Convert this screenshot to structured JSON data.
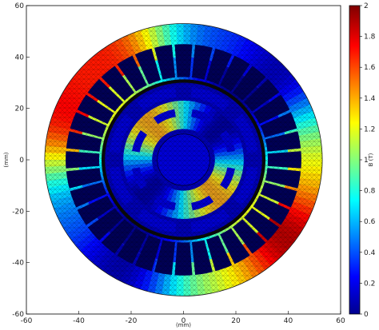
{
  "chart_data": {
    "type": "heatmap",
    "title": "",
    "xlabel": "(mm)",
    "ylabel": "(mm)",
    "xlim": [
      -60,
      60
    ],
    "ylim": [
      -60,
      60
    ],
    "xticks": [
      -60,
      -40,
      -20,
      0,
      20,
      40,
      60
    ],
    "yticks": [
      -60,
      -40,
      -20,
      0,
      20,
      40,
      60
    ],
    "colorbar": {
      "label": "B (T)",
      "range": [
        0,
        2
      ],
      "ticks": [
        "0",
        "0.2",
        "0.4",
        "0.6",
        "0.8",
        "1",
        "1.2",
        "1.4",
        "1.6",
        "1.8",
        "2"
      ],
      "colormap": "jet"
    },
    "geometry": {
      "stator_outer_radius": 53,
      "stator_inner_radius": 31,
      "slot_count": 36,
      "rotor_outer_radius": 30,
      "shaft_radius": 10,
      "poles": 8
    },
    "grid": false
  },
  "colors": {
    "jet_stops": [
      "#00008f",
      "#0000ff",
      "#00ffff",
      "#ffff00",
      "#ff0000",
      "#800000"
    ],
    "mesh": "#1a1a1a"
  }
}
